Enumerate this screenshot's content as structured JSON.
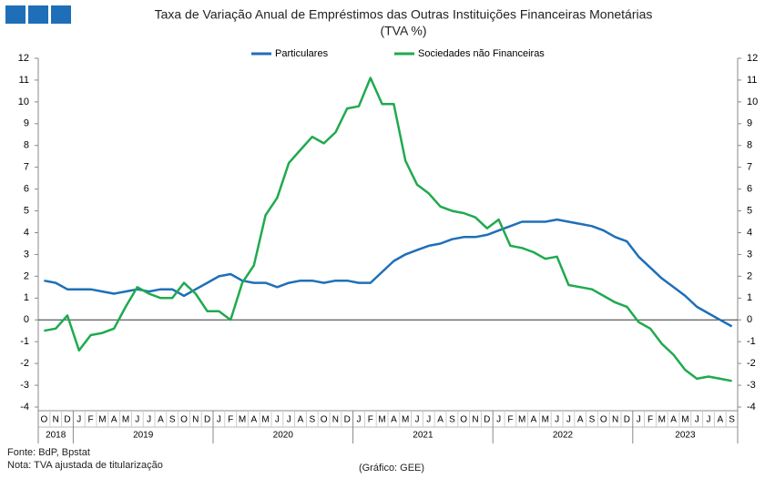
{
  "chart_data": {
    "type": "line",
    "title": "Taxa de Variação Anual de Empréstimos das Outras Instituições Financeiras Monetárias",
    "subtitle": "(TVA %)",
    "categories": [
      "O",
      "N",
      "D",
      "J",
      "F",
      "M",
      "A",
      "M",
      "J",
      "J",
      "A",
      "S",
      "O",
      "N",
      "D",
      "J",
      "F",
      "M",
      "A",
      "M",
      "J",
      "J",
      "A",
      "S",
      "O",
      "N",
      "D",
      "J",
      "F",
      "M",
      "A",
      "M",
      "J",
      "J",
      "A",
      "S",
      "O",
      "N",
      "D",
      "J",
      "F",
      "M",
      "A",
      "M",
      "J",
      "J",
      "A",
      "S",
      "O",
      "N",
      "D",
      "J",
      "F",
      "M",
      "A",
      "M",
      "J",
      "J",
      "A",
      "S"
    ],
    "years": [
      "2018",
      "2019",
      "2020",
      "2021",
      "2022",
      "2023"
    ],
    "series": [
      {
        "name": "Particulares",
        "color": "#1f6fb8",
        "values": [
          1.8,
          1.7,
          1.4,
          1.4,
          1.4,
          1.3,
          1.2,
          1.3,
          1.4,
          1.3,
          1.4,
          1.4,
          1.1,
          1.4,
          1.7,
          2.0,
          2.1,
          1.8,
          1.7,
          1.7,
          1.5,
          1.7,
          1.8,
          1.8,
          1.7,
          1.8,
          1.8,
          1.7,
          1.7,
          2.2,
          2.7,
          3.0,
          3.2,
          3.4,
          3.5,
          3.7,
          3.8,
          3.8,
          3.9,
          4.1,
          4.3,
          4.5,
          4.5,
          4.5,
          4.6,
          4.5,
          4.4,
          4.3,
          4.1,
          3.8,
          3.6,
          2.9,
          2.4,
          1.9,
          1.5,
          1.1,
          0.6,
          0.3,
          0.0,
          -0.3
        ]
      },
      {
        "name": "Sociedades não Financeiras",
        "color": "#1faa4f",
        "values": [
          -0.5,
          -0.4,
          0.2,
          -1.4,
          -0.7,
          -0.6,
          -0.4,
          0.6,
          1.5,
          1.2,
          1.0,
          1.0,
          1.7,
          1.2,
          0.4,
          0.4,
          0.0,
          1.7,
          2.5,
          4.8,
          5.6,
          7.2,
          7.8,
          8.4,
          8.1,
          8.6,
          9.7,
          9.8,
          11.1,
          9.9,
          9.9,
          7.3,
          6.2,
          5.8,
          5.2,
          5.0,
          4.9,
          4.7,
          4.2,
          4.6,
          3.4,
          3.3,
          3.1,
          2.8,
          2.9,
          1.6,
          1.5,
          1.4,
          1.1,
          0.8,
          0.6,
          -0.1,
          -0.4,
          -1.1,
          -1.6,
          -2.3,
          -2.7,
          -2.6,
          -2.7,
          -2.8
        ]
      }
    ],
    "ylim": [
      -4,
      12
    ],
    "yticks": [
      -4,
      -3,
      -2,
      -1,
      0,
      1,
      2,
      3,
      4,
      5,
      6,
      7,
      8,
      9,
      10,
      11,
      12
    ],
    "legend": "top",
    "source": "Fonte: BdP, Bpstat",
    "note": "Nota: TVA ajustada de titularização",
    "credit": "(Gráfico: GEE)"
  }
}
